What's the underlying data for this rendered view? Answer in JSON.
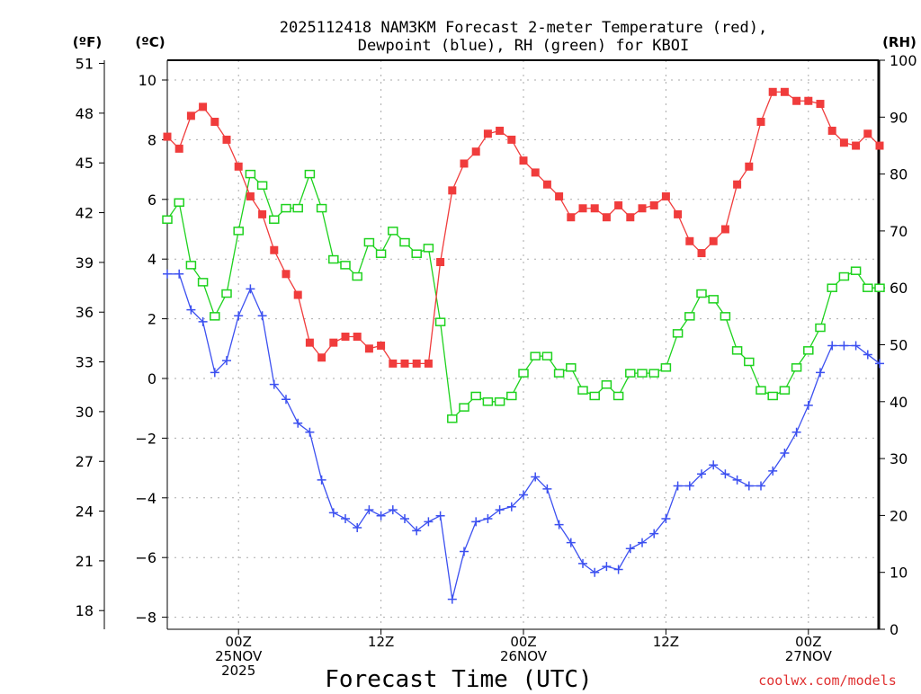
{
  "chart_data": {
    "type": "line",
    "title_line1": "2025112418 NAM3KM Forecast 2-meter Temperature (red),",
    "title_line2": "Dewpoint (blue), RH (green) for KBOI",
    "xlabel": "Forecast Time (UTC)",
    "unit_labels": {
      "fahrenheit": "(ºF)",
      "celsius": "(ºC)",
      "rh": "(RH)"
    },
    "credit": "coolwx.com/models",
    "x_start": "2025-11-24 18Z",
    "x_step_hours": 1,
    "x_ticks": [
      {
        "hour": 6,
        "lines": [
          "00Z",
          "25NOV",
          "2025"
        ]
      },
      {
        "hour": 18,
        "lines": [
          "12Z"
        ]
      },
      {
        "hour": 30,
        "lines": [
          "00Z",
          "26NOV"
        ]
      },
      {
        "hour": 42,
        "lines": [
          "12Z"
        ]
      },
      {
        "hour": 54,
        "lines": [
          "00Z",
          "27NOV"
        ]
      }
    ],
    "celsius_axis": {
      "range": [
        -8.6,
        10.6
      ],
      "ticks": [
        -8,
        -6,
        -4,
        -2,
        0,
        2,
        4,
        6,
        8,
        10
      ],
      "tick_labels": [
        "−8",
        "−6",
        "−4",
        "−2",
        "0",
        "2",
        "4",
        "6",
        "8",
        "10"
      ]
    },
    "fahrenheit_axis": {
      "ticks": [
        18,
        21,
        24,
        27,
        30,
        33,
        36,
        39,
        42,
        45,
        48,
        51
      ],
      "tick_labels": [
        "18",
        "21",
        "24",
        "27",
        "30",
        "33",
        "36",
        "39",
        "42",
        "45",
        "48",
        "51"
      ]
    },
    "rh_axis": {
      "range": [
        0,
        100
      ],
      "ticks": [
        0,
        10,
        20,
        30,
        40,
        50,
        60,
        70,
        80,
        90,
        100
      ],
      "tick_labels": [
        "0",
        "10",
        "20",
        "30",
        "40",
        "50",
        "60",
        "70",
        "80",
        "90",
        "100"
      ]
    },
    "grid": true,
    "colors": {
      "temperature": "#f03c3c",
      "dewpoint": "#3c50f0",
      "rh": "#1ed21e",
      "grid": "#aaaaaa",
      "credit": "#e03030"
    },
    "series": [
      {
        "name": "Temperature (°C)",
        "axis": "celsius",
        "marker": "filled-square",
        "values": [
          8.1,
          7.7,
          8.8,
          9.1,
          8.6,
          8.0,
          7.1,
          6.1,
          5.5,
          4.3,
          3.5,
          2.8,
          1.2,
          0.7,
          1.2,
          1.4,
          1.4,
          1.0,
          1.1,
          0.5,
          0.5,
          0.5,
          0.5,
          3.9,
          6.3,
          7.2,
          7.6,
          8.2,
          8.3,
          8.0,
          7.3,
          6.9,
          6.5,
          6.1,
          5.4,
          5.7,
          5.7,
          5.4,
          5.8,
          5.4,
          5.7,
          5.8,
          6.1,
          5.5,
          4.6,
          4.2,
          4.6,
          5.0,
          6.5,
          7.1,
          8.6,
          9.6,
          9.6,
          9.3,
          9.3,
          9.2,
          8.3,
          7.9,
          7.8,
          8.2,
          7.8
        ]
      },
      {
        "name": "Dewpoint (°C)",
        "axis": "celsius",
        "marker": "plus",
        "values": [
          3.5,
          3.5,
          2.3,
          1.9,
          0.2,
          0.6,
          2.1,
          3.0,
          2.1,
          -0.2,
          -0.7,
          -1.5,
          -1.8,
          -3.4,
          -4.5,
          -4.7,
          -5.0,
          -4.4,
          -4.6,
          -4.4,
          -4.7,
          -5.1,
          -4.8,
          -4.6,
          -7.4,
          -5.8,
          -4.8,
          -4.7,
          -4.4,
          -4.3,
          -3.9,
          -3.3,
          -3.7,
          -4.9,
          -5.5,
          -6.2,
          -6.5,
          -6.3,
          -6.4,
          -5.7,
          -5.5,
          -5.2,
          -4.7,
          -3.6,
          -3.6,
          -3.2,
          -2.9,
          -3.2,
          -3.4,
          -3.6,
          -3.6,
          -3.1,
          -2.5,
          -1.8,
          -0.9,
          0.2,
          1.1,
          1.1,
          1.1,
          0.8,
          0.5
        ]
      },
      {
        "name": "RH (%)",
        "axis": "rh",
        "marker": "open-square",
        "values": [
          72,
          75,
          64,
          61,
          55,
          59,
          70,
          80,
          78,
          72,
          74,
          74,
          80,
          74,
          65,
          64,
          62,
          68,
          66,
          70,
          68,
          66,
          67,
          54,
          37,
          39,
          41,
          40,
          40,
          41,
          45,
          48,
          48,
          45,
          46,
          42,
          41,
          43,
          41,
          45,
          45,
          45,
          46,
          52,
          55,
          59,
          58,
          55,
          49,
          47,
          42,
          41,
          42,
          46,
          49,
          53,
          60,
          62,
          63,
          60,
          60
        ]
      }
    ]
  }
}
